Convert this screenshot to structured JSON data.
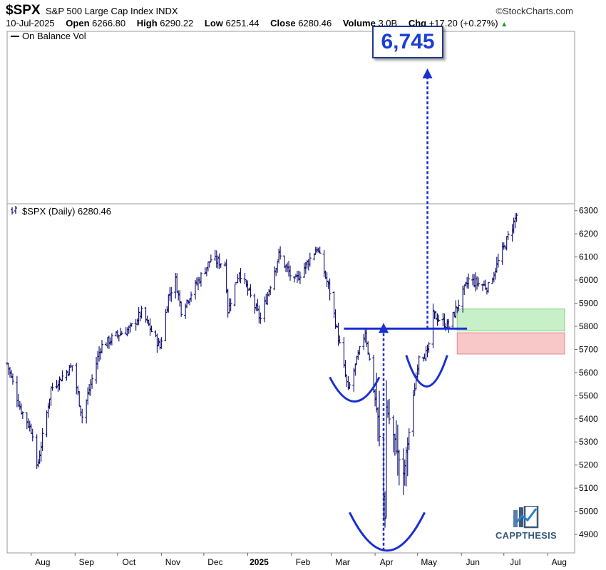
{
  "header": {
    "symbol": "$SPX",
    "name": "S&P 500 Large Cap Index",
    "exchange": "INDX",
    "brand": "©StockCharts.com",
    "date": "10-Jul-2025",
    "open_label": "Open",
    "open": "6266.80",
    "high_label": "High",
    "high": "6290.22",
    "low_label": "Low",
    "low": "6251.44",
    "close_label": "Close",
    "close": "6280.46",
    "volume_label": "Volume",
    "volume": "3.0B",
    "chg_label": "Chg",
    "chg": "+17.20 (+0.27%)"
  },
  "top_panel": {
    "legend": "On Balance Vol"
  },
  "price_panel": {
    "legend": "$SPX (Daily) 6280.46"
  },
  "target": {
    "label": "6,745"
  },
  "logo": {
    "text": "CAPPTHESIS"
  },
  "colors": {
    "bars": "#0a0a6e",
    "annotation": "#1a2fd4",
    "green_zone": "#c8f0c8",
    "red_zone": "#f8c8c8",
    "target_text": "#1b3fd6"
  },
  "chart_data": {
    "type": "ohlc",
    "title": "$SPX (Daily) 6280.46",
    "y_ticks": [
      4900,
      5000,
      5100,
      5200,
      5300,
      5400,
      5500,
      5600,
      5700,
      5800,
      5900,
      6000,
      6100,
      6200,
      6300
    ],
    "ylim": [
      4820,
      6330
    ],
    "x_ticks": [
      "Aug",
      "Sep",
      "Oct",
      "Nov",
      "Dec",
      "2025",
      "Feb",
      "Mar",
      "Apr",
      "May",
      "Jun",
      "Jul",
      "Aug"
    ],
    "x_range": [
      "2024-07-15",
      "2025-08-20"
    ],
    "price_path": [
      [
        "2024-07-15",
        5640
      ],
      [
        "2024-07-24",
        5450
      ],
      [
        "2024-08-02",
        5340
      ],
      [
        "2024-08-05",
        5180
      ],
      [
        "2024-08-15",
        5530
      ],
      [
        "2024-08-30",
        5630
      ],
      [
        "2024-09-06",
        5410
      ],
      [
        "2024-09-19",
        5710
      ],
      [
        "2024-09-30",
        5760
      ],
      [
        "2024-10-10",
        5790
      ],
      [
        "2024-10-18",
        5860
      ],
      [
        "2024-10-31",
        5710
      ],
      [
        "2024-11-06",
        5930
      ],
      [
        "2024-11-11",
        6000
      ],
      [
        "2024-11-15",
        5870
      ],
      [
        "2024-12-06",
        6090
      ],
      [
        "2024-12-16",
        6070
      ],
      [
        "2024-12-18",
        5870
      ],
      [
        "2024-12-26",
        6040
      ],
      [
        "2025-01-10",
        5830
      ],
      [
        "2025-01-23",
        6110
      ],
      [
        "2025-02-03",
        5990
      ],
      [
        "2025-02-19",
        6140
      ],
      [
        "2025-02-28",
        5950
      ],
      [
        "2025-03-13",
        5520
      ],
      [
        "2025-03-25",
        5780
      ],
      [
        "2025-04-03",
        5400
      ],
      [
        "2025-04-08",
        4980
      ],
      [
        "2025-04-09",
        5450
      ],
      [
        "2025-04-21",
        5150
      ],
      [
        "2025-05-02",
        5680
      ],
      [
        "2025-05-08",
        5680
      ],
      [
        "2025-05-12",
        5850
      ],
      [
        "2025-05-23",
        5800
      ],
      [
        "2025-06-06",
        6000
      ],
      [
        "2025-06-20",
        5970
      ],
      [
        "2025-07-10",
        6280
      ]
    ],
    "ohlc_last": {
      "open": 6266.8,
      "high": 6290.22,
      "low": 6251.44,
      "close": 6280.46
    },
    "neckline": {
      "value": 5790,
      "from": "2025-03-10",
      "to": "2025-06-05"
    },
    "target_value": 6745,
    "zones": [
      {
        "color": "green",
        "from": "2025-05-29",
        "to": "2025-08-20",
        "low": 5780,
        "high": 5875
      },
      {
        "color": "red",
        "from": "2025-05-29",
        "to": "2025-08-20",
        "low": 5680,
        "high": 5772
      }
    ],
    "patterns": [
      {
        "name": "left shoulder",
        "from": "2025-02-28",
        "to": "2025-04-04",
        "y_top": 5580,
        "y_bottom": 5475
      },
      {
        "name": "head",
        "from": "2025-03-14",
        "to": "2025-05-06",
        "y_top": 4995,
        "y_bottom": 4830
      },
      {
        "name": "right shoulder",
        "from": "2025-04-23",
        "to": "2025-05-22",
        "y_top": 5675,
        "y_bottom": 5540
      }
    ],
    "arrows": [
      {
        "date": "2025-04-07",
        "from": 4830,
        "to": 5790
      },
      {
        "date": "2025-05-08",
        "from": 5790,
        "to": 6745
      }
    ]
  }
}
